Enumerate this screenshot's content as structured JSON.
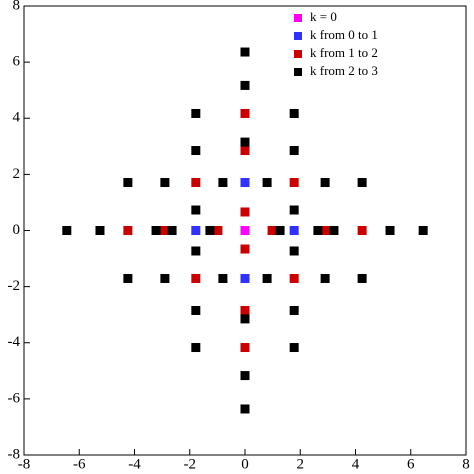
{
  "chart_data": {
    "type": "scatter",
    "xlim": [
      -8,
      8
    ],
    "ylim": [
      -8,
      8
    ],
    "xticks": [
      -8,
      -6,
      -4,
      -2,
      0,
      2,
      4,
      6,
      8
    ],
    "yticks": [
      -8,
      -6,
      -4,
      -2,
      0,
      2,
      4,
      6,
      8
    ],
    "legend": "upper-right",
    "series": [
      {
        "name": "k = 0",
        "color": "#ff00ff",
        "x": [
          0
        ],
        "y": [
          0
        ]
      },
      {
        "name": "k from 0 to 1",
        "color": "#3030ff",
        "x": [
          -1.78,
          1.78,
          0,
          0
        ],
        "y": [
          0,
          0,
          1.71,
          -1.71
        ]
      },
      {
        "name": "k from 1 to 2",
        "color": "#cc0000",
        "x": [
          -0.98,
          0.98,
          -2.9,
          2.9,
          -4.24,
          4.24,
          0,
          0,
          0,
          0,
          0,
          0,
          -1.78,
          1.78,
          -1.78,
          1.78
        ],
        "y": [
          0,
          0,
          0,
          0,
          0,
          0,
          0.66,
          -0.66,
          2.85,
          -2.85,
          4.17,
          -4.17,
          1.71,
          1.71,
          -1.71,
          -1.71
        ]
      },
      {
        "name": "k from 2 to 3",
        "color": "#000000",
        "x": [
          -1.27,
          1.27,
          -2.64,
          2.64,
          -3.22,
          3.22,
          -5.25,
          5.25,
          -6.45,
          6.45,
          0,
          0,
          0,
          0,
          0,
          0,
          -1.78,
          1.78,
          -1.78,
          1.78,
          -1.78,
          1.78,
          -1.78,
          1.78,
          -1.78,
          1.78,
          -1.78,
          1.78,
          -0.8,
          0.8,
          -0.8,
          0.8,
          -2.9,
          2.9,
          -2.9,
          2.9,
          -4.24,
          4.24,
          -4.24,
          4.24
        ],
        "y": [
          0,
          0,
          0,
          0,
          0,
          0,
          0,
          0,
          0,
          0,
          3.15,
          -3.15,
          5.17,
          -5.17,
          6.36,
          -6.36,
          0.73,
          0.73,
          -0.73,
          -0.73,
          2.85,
          2.85,
          -2.85,
          -2.85,
          4.17,
          4.17,
          -4.17,
          -4.17,
          1.71,
          1.71,
          -1.71,
          -1.71,
          1.71,
          1.71,
          -1.71,
          -1.71,
          1.71,
          1.71,
          -1.71,
          -1.71
        ]
      }
    ]
  }
}
